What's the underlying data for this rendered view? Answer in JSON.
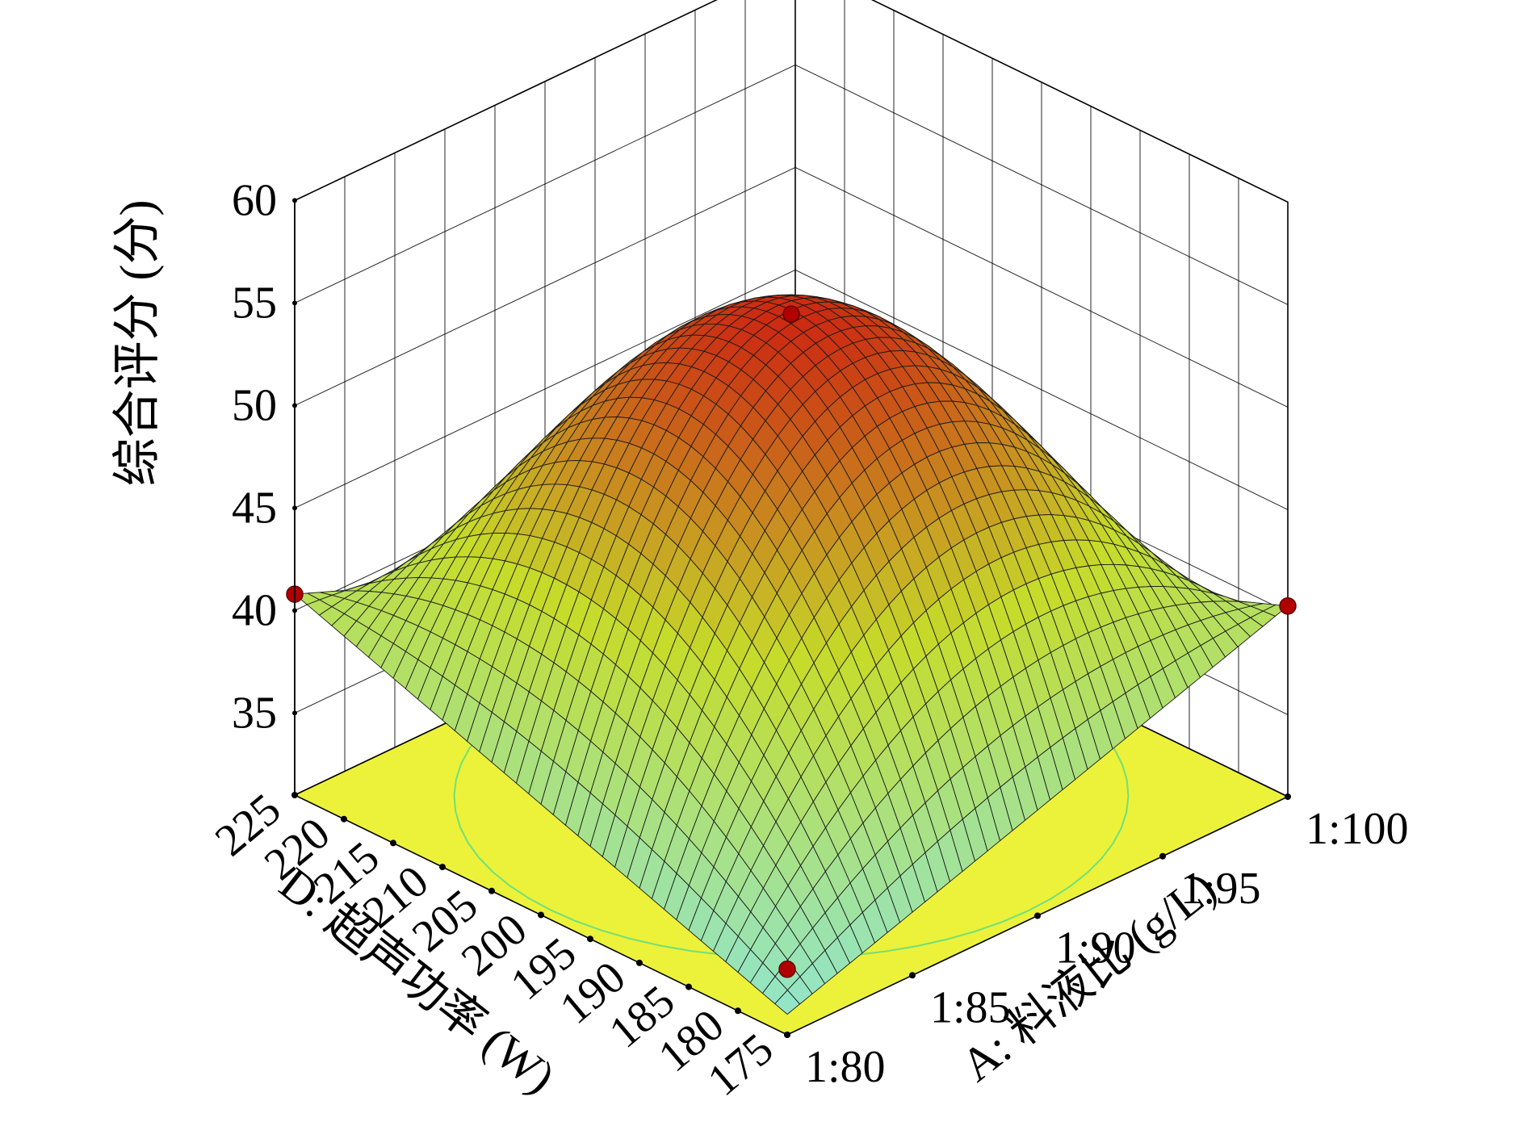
{
  "chart_data": {
    "type": "surface",
    "title": "",
    "zlabel": "综合评分 (分)",
    "xlabel": "A: 料液比 (g/L)",
    "ylabel": "D: 超声功率 (W)",
    "x_ticks": [
      "1:80",
      "1:85",
      "1:90",
      "1:95",
      "1:100"
    ],
    "x_range": [
      80,
      100
    ],
    "y_ticks": [
      "175",
      "180",
      "185",
      "190",
      "195",
      "200",
      "205",
      "210",
      "215",
      "220",
      "225"
    ],
    "y_range": [
      175,
      225
    ],
    "z_ticks": [
      "35",
      "40",
      "45",
      "50",
      "55",
      "60"
    ],
    "z_range": [
      31,
      60
    ],
    "surface": {
      "peak": {
        "x": 90,
        "y": 200,
        "z": 54.7
      },
      "corners": [
        {
          "x": 80,
          "y": 175,
          "z": 32
        },
        {
          "x": 100,
          "y": 175,
          "z": 40.3
        },
        {
          "x": 80,
          "y": 225,
          "z": 40.8
        },
        {
          "x": 100,
          "y": 225,
          "z": 31
        }
      ]
    },
    "design_points": [
      {
        "x": 90,
        "y": 200,
        "z": 54.5
      },
      {
        "x": 100,
        "y": 175,
        "z": 40.3
      },
      {
        "x": 80,
        "y": 225,
        "z": 40.8
      },
      {
        "x": 80,
        "y": 175,
        "z": 34.2
      }
    ],
    "contour_levels": [
      45,
      50,
      53
    ],
    "colors": {
      "floor": "#ecf23a",
      "high": "#cc2a12",
      "mid": "#c6dc2a",
      "low": "#8ee6d6",
      "point": "#b00000",
      "contour_high": "#ff2020",
      "contour_low": "#6ee07a"
    }
  }
}
